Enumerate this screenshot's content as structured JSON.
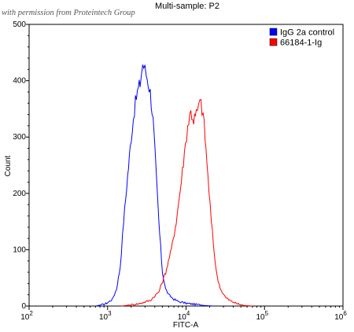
{
  "watermark": "with permission from Proteintech Group",
  "chart_data": {
    "type": "line",
    "title": "Multi-sample: P2",
    "xlabel": "FITC-A",
    "ylabel": "Count",
    "xscale": "log",
    "xlim": [
      100,
      1000000
    ],
    "ylim": [
      0,
      500
    ],
    "grid": false,
    "legend_position": "top-right",
    "xticks": [
      {
        "value": 100,
        "base": "10",
        "exp": "2"
      },
      {
        "value": 1000,
        "base": "10",
        "exp": "3"
      },
      {
        "value": 10000,
        "base": "10",
        "exp": "4"
      },
      {
        "value": 100000,
        "base": "10",
        "exp": "5"
      },
      {
        "value": 1000000,
        "base": "10",
        "exp": "6"
      }
    ],
    "yticks": [
      0,
      100,
      200,
      300,
      400,
      500
    ],
    "series": [
      {
        "name": "IgG 2a control",
        "color": "#0000ff",
        "x": [
          700,
          900,
          1000,
          1150,
          1300,
          1450,
          1600,
          1800,
          2000,
          2200,
          2400,
          2600,
          2800,
          3000,
          3200,
          3500,
          3800,
          4100,
          4500,
          5000,
          5500,
          6000,
          7000,
          8000,
          10000,
          13000,
          17000,
          22000
        ],
        "y": [
          0,
          3,
          6,
          12,
          30,
          70,
          150,
          230,
          300,
          350,
          380,
          395,
          430,
          420,
          405,
          380,
          330,
          250,
          150,
          60,
          30,
          20,
          12,
          8,
          5,
          3,
          1,
          0
        ]
      },
      {
        "name": "66184-1-Ig",
        "color": "#ff0000",
        "x": [
          1500,
          2500,
          3500,
          4500,
          5500,
          6500,
          7500,
          8500,
          9500,
          10500,
          11500,
          12500,
          13500,
          14500,
          15500,
          16500,
          17500,
          19000,
          21000,
          23000,
          25000,
          28000,
          32000,
          38000,
          45000,
          55000,
          70000
        ],
        "y": [
          0,
          4,
          10,
          25,
          60,
          100,
          150,
          210,
          270,
          320,
          345,
          330,
          340,
          355,
          360,
          340,
          300,
          230,
          150,
          90,
          50,
          28,
          15,
          8,
          4,
          1,
          0
        ]
      }
    ]
  }
}
